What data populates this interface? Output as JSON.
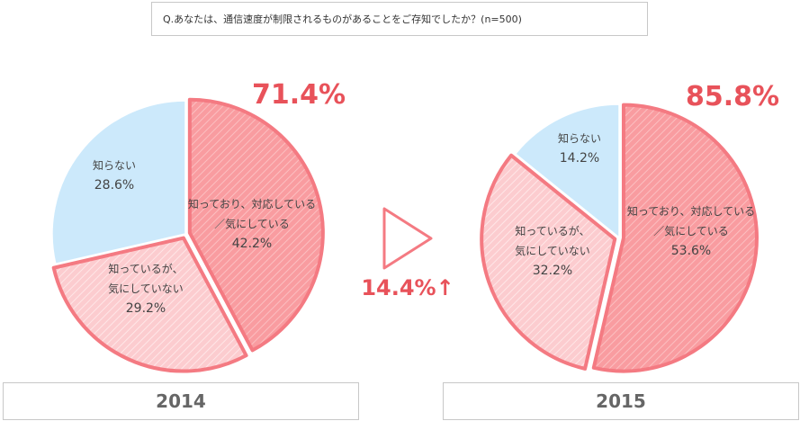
{
  "question": "Q.あなたは、通信速度が制限されるものがあることをご存知でしたか？(n=500)",
  "change_label": "14.4%↑",
  "colors": {
    "aware_action": "#f99ca0",
    "aware_no_action": "#fccccf",
    "unaware": "#cce9fb",
    "outline": "#f47a82",
    "accent_text": "#e8525a",
    "label_text": "#444444"
  },
  "chart_data": [
    {
      "type": "pie",
      "year": "2014",
      "total_aware_label": "71.4%",
      "slices": [
        {
          "lines": [
            "知っており、対応している",
            "／気にしている"
          ],
          "value_label": "42.2%",
          "value": 42.2
        },
        {
          "lines": [
            "知っているが、",
            "気にしていない"
          ],
          "value_label": "29.2%",
          "value": 29.2
        },
        {
          "lines": [
            "知らない"
          ],
          "value_label": "28.6%",
          "value": 28.6
        }
      ]
    },
    {
      "type": "pie",
      "year": "2015",
      "total_aware_label": "85.8%",
      "slices": [
        {
          "lines": [
            "知っており、対応している",
            "／気にしている"
          ],
          "value_label": "53.6%",
          "value": 53.6
        },
        {
          "lines": [
            "知っているが、",
            "気にしていない"
          ],
          "value_label": "32.2%",
          "value": 32.2
        },
        {
          "lines": [
            "知らない"
          ],
          "value_label": "14.2%",
          "value": 14.2
        }
      ]
    }
  ]
}
